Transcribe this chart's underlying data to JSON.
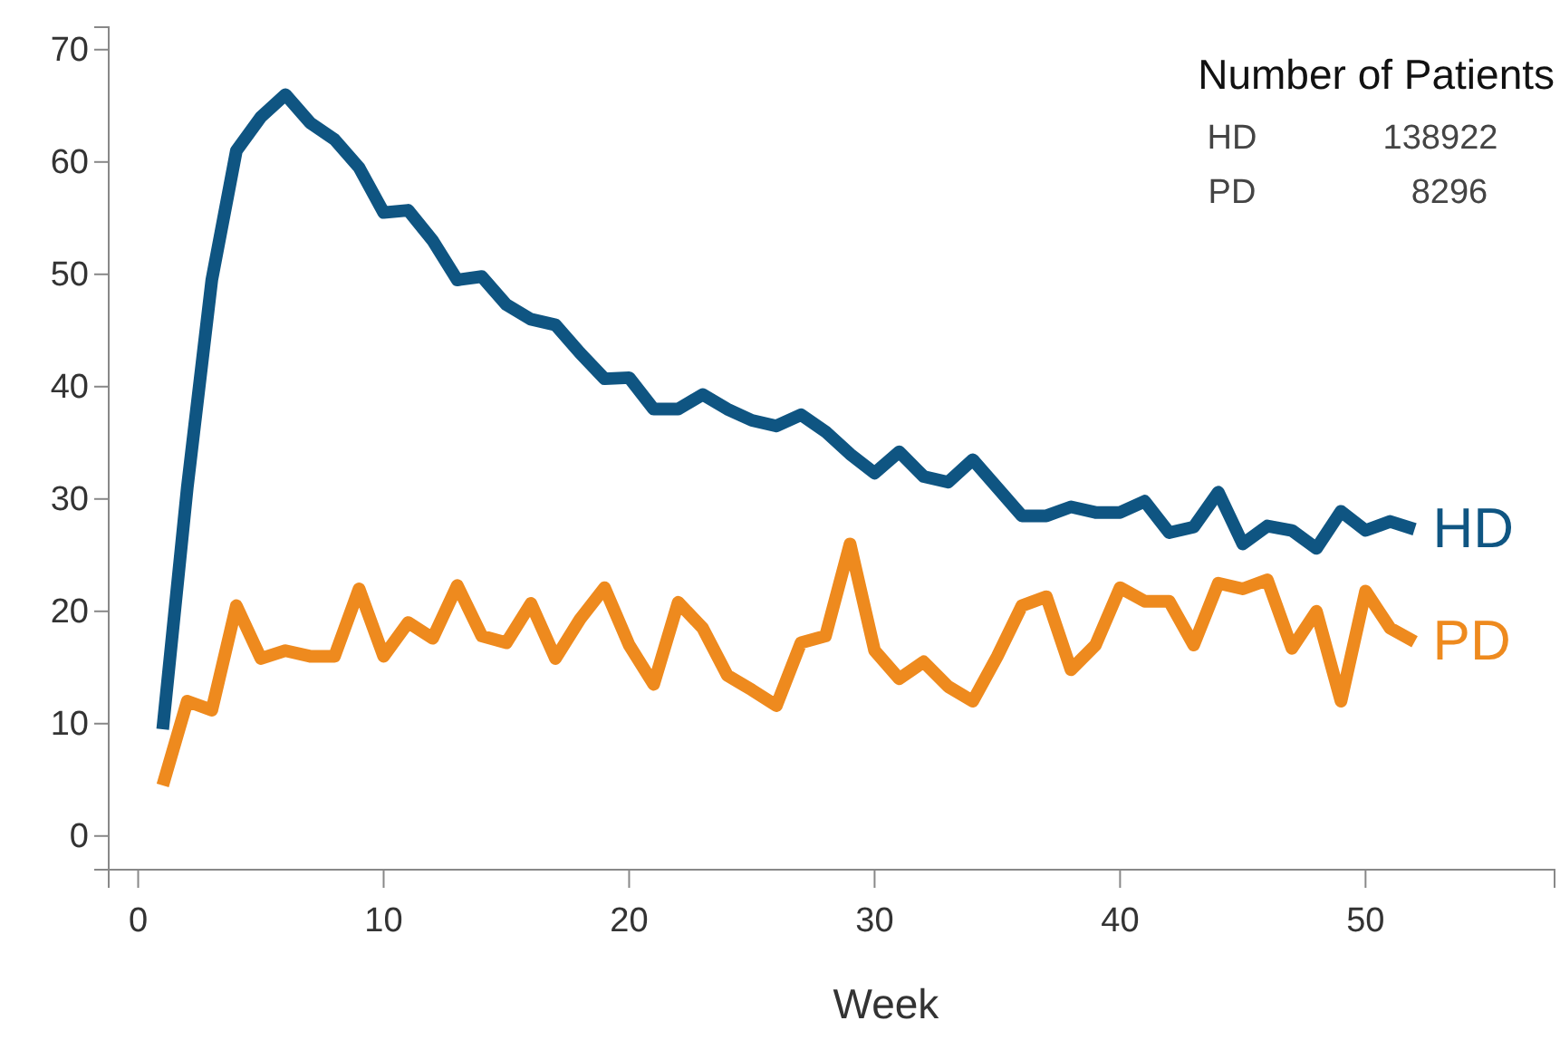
{
  "chart_data": {
    "type": "line",
    "xlabel": "Week",
    "x": [
      1,
      2,
      3,
      4,
      5,
      6,
      7,
      8,
      9,
      10,
      11,
      12,
      13,
      14,
      15,
      16,
      17,
      18,
      19,
      20,
      21,
      22,
      23,
      24,
      25,
      26,
      27,
      28,
      29,
      30,
      31,
      32,
      33,
      34,
      35,
      36,
      37,
      38,
      39,
      40,
      41,
      42,
      43,
      44,
      45,
      46,
      47,
      48,
      49,
      50,
      51,
      52
    ],
    "series": [
      {
        "name": "HD",
        "color": "#0f5582",
        "values": [
          9.5,
          31,
          49.5,
          61,
          64,
          66,
          63.5,
          62,
          59.5,
          55.5,
          55.7,
          53,
          49.5,
          49.8,
          47.3,
          46,
          45.5,
          43,
          40.7,
          40.8,
          38,
          38,
          39.3,
          38,
          37,
          36.5,
          37.5,
          36,
          34,
          32.3,
          34.2,
          32,
          31.5,
          33.5,
          31,
          28.5,
          28.5,
          29.3,
          28.8,
          28.8,
          29.8,
          27,
          27.5,
          30.6,
          26,
          27.6,
          27.2,
          25.6,
          28.9,
          27.2,
          28,
          27.3
        ]
      },
      {
        "name": "PD",
        "color": "#ee8a1e",
        "values": [
          4.5,
          12,
          11.2,
          20.5,
          15.8,
          16.5,
          16,
          16,
          22,
          16,
          19,
          17.6,
          22.3,
          17.8,
          17.2,
          20.7,
          15.8,
          19.3,
          22.1,
          17,
          13.5,
          20.8,
          18.5,
          14.3,
          13,
          11.6,
          17.2,
          17.8,
          26,
          16.5,
          14,
          15.5,
          13.3,
          12,
          16,
          20.5,
          21.3,
          14.8,
          17,
          22.1,
          20.9,
          20.9,
          17,
          22.5,
          22,
          22.8,
          16.7,
          20,
          12,
          21.8,
          18.5,
          17.3
        ]
      }
    ],
    "xlim": [
      -1.2,
      57.7
    ],
    "xticks": [
      0,
      10,
      20,
      30,
      40,
      50
    ],
    "ylim": [
      -3,
      72
    ],
    "yticks": [
      0,
      10,
      20,
      30,
      40,
      50,
      60,
      70
    ],
    "grid": false,
    "legend": false,
    "marker": "none",
    "line_style": "solid",
    "annotations": [
      "Number of Patients",
      "HD",
      "138922",
      "PD",
      "8296"
    ]
  }
}
